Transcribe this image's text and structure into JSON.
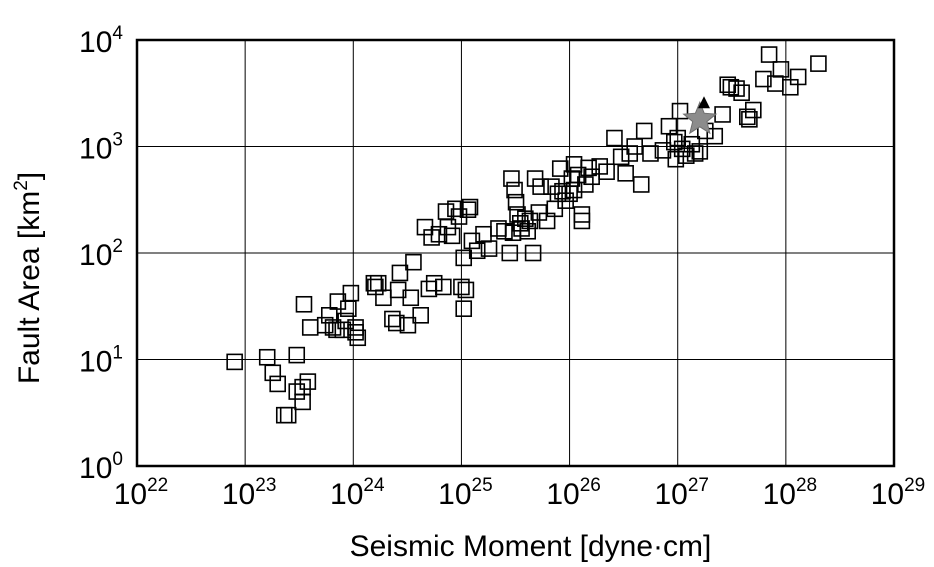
{
  "chart_data": {
    "type": "scatter",
    "title": "",
    "xlabel": "Seismic Moment [dyne·cm]",
    "ylabel_main": "Fault Area [km",
    "ylabel_sup": "2",
    "ylabel_end": "]",
    "x_scale": "log",
    "y_scale": "log",
    "xlim": [
      1e+22,
      1e+29
    ],
    "ylim": [
      1,
      10000
    ],
    "grid": true,
    "marker": "open-square",
    "x_ticks": [
      {
        "base": "10",
        "exp": "22",
        "value": 1e+22
      },
      {
        "base": "10",
        "exp": "23",
        "value": 1e+23
      },
      {
        "base": "10",
        "exp": "24",
        "value": 1e+24
      },
      {
        "base": "10",
        "exp": "25",
        "value": 1e+25
      },
      {
        "base": "10",
        "exp": "26",
        "value": 1e+26
      },
      {
        "base": "10",
        "exp": "27",
        "value": 1e+27
      },
      {
        "base": "10",
        "exp": "28",
        "value": 1e+28
      },
      {
        "base": "10",
        "exp": "29",
        "value": 1e+29
      }
    ],
    "y_ticks": [
      {
        "base": "10",
        "exp": "0",
        "value": 1
      },
      {
        "base": "10",
        "exp": "1",
        "value": 10
      },
      {
        "base": "10",
        "exp": "2",
        "value": 100
      },
      {
        "base": "10",
        "exp": "3",
        "value": 1000
      },
      {
        "base": "10",
        "exp": "4",
        "value": 10000
      }
    ],
    "points": [
      [
        8e+22,
        9.5
      ],
      [
        1.6e+23,
        10.5
      ],
      [
        1.8e+23,
        7.5
      ],
      [
        2e+23,
        5.9
      ],
      [
        2.3e+23,
        3.0
      ],
      [
        2.5e+23,
        3.0
      ],
      [
        3e+23,
        5.0
      ],
      [
        3e+23,
        11.0
      ],
      [
        3.4e+23,
        4.0
      ],
      [
        3.4e+23,
        5.5
      ],
      [
        3.8e+23,
        6.2
      ],
      [
        3.5e+23,
        33
      ],
      [
        4e+23,
        20
      ],
      [
        5.5e+23,
        21
      ],
      [
        6e+23,
        26
      ],
      [
        6.5e+23,
        20
      ],
      [
        7e+23,
        19
      ],
      [
        7.2e+23,
        35
      ],
      [
        8e+23,
        19
      ],
      [
        8.5e+23,
        23
      ],
      [
        9e+23,
        30
      ],
      [
        9.5e+23,
        42
      ],
      [
        1.05e+24,
        18
      ],
      [
        1.1e+24,
        16
      ],
      [
        1.05e+24,
        20
      ],
      [
        1.55e+24,
        52
      ],
      [
        1.6e+24,
        48
      ],
      [
        1.7e+24,
        52
      ],
      [
        1.9e+24,
        38
      ],
      [
        2.3e+24,
        24
      ],
      [
        2.5e+24,
        22
      ],
      [
        2.6e+24,
        45
      ],
      [
        2.7e+24,
        65
      ],
      [
        3.2e+24,
        21
      ],
      [
        3.4e+24,
        38
      ],
      [
        3.6e+24,
        82
      ],
      [
        4.2e+24,
        26
      ],
      [
        4.6e+24,
        175
      ],
      [
        5e+24,
        46
      ],
      [
        5.3e+24,
        140
      ],
      [
        5.6e+24,
        52
      ],
      [
        6.2e+24,
        150
      ],
      [
        6.8e+24,
        48
      ],
      [
        7.2e+24,
        245
      ],
      [
        7.5e+24,
        175
      ],
      [
        8.2e+24,
        145
      ],
      [
        8.8e+24,
        260
      ],
      [
        9.5e+24,
        220
      ],
      [
        1e+25,
        48
      ],
      [
        1.05e+25,
        90
      ],
      [
        1.05e+25,
        30
      ],
      [
        1.1e+25,
        45
      ],
      [
        1.15e+25,
        255
      ],
      [
        1.2e+25,
        270
      ],
      [
        1.25e+25,
        130
      ],
      [
        1.4e+25,
        105
      ],
      [
        1.6e+25,
        150
      ],
      [
        1.8e+25,
        110
      ],
      [
        2.2e+25,
        170
      ],
      [
        2.5e+25,
        160
      ],
      [
        2.8e+25,
        100
      ],
      [
        3e+25,
        155
      ],
      [
        2.9e+25,
        500
      ],
      [
        3.1e+25,
        390
      ],
      [
        3.2e+25,
        300
      ],
      [
        3.3e+25,
        230
      ],
      [
        3.5e+25,
        190
      ],
      [
        3.6e+25,
        170
      ],
      [
        3.9e+25,
        210
      ],
      [
        4.1e+25,
        160
      ],
      [
        4.3e+25,
        200
      ],
      [
        4.6e+25,
        100
      ],
      [
        4.8e+25,
        500
      ],
      [
        5.2e+25,
        240
      ],
      [
        5.4e+25,
        420
      ],
      [
        6.2e+25,
        200
      ],
      [
        6.8e+25,
        420
      ],
      [
        7.3e+25,
        260
      ],
      [
        7.8e+25,
        360
      ],
      [
        8.2e+25,
        620
      ],
      [
        8.6e+25,
        380
      ],
      [
        9.2e+25,
        310
      ],
      [
        1e+26,
        360
      ],
      [
        1.05e+26,
        500
      ],
      [
        1.1e+26,
        680
      ],
      [
        1.1e+26,
        390
      ],
      [
        1.2e+26,
        540
      ],
      [
        1.3e+26,
        230
      ],
      [
        1.3e+26,
        200
      ],
      [
        1.4e+26,
        440
      ],
      [
        1.5e+26,
        630
      ],
      [
        1.6e+26,
        520
      ],
      [
        1.9e+26,
        650
      ],
      [
        2.2e+26,
        580
      ],
      [
        2.6e+26,
        1200
      ],
      [
        3e+26,
        800
      ],
      [
        3.3e+26,
        560
      ],
      [
        3.6e+26,
        860
      ],
      [
        4e+26,
        1000
      ],
      [
        4.6e+26,
        440
      ],
      [
        4.9e+26,
        1400
      ],
      [
        5.6e+26,
        860
      ],
      [
        7.3e+26,
        920
      ],
      [
        8.3e+26,
        1550
      ],
      [
        9.3e+26,
        1100
      ],
      [
        9.6e+26,
        760
      ],
      [
        1e+27,
        1200
      ],
      [
        1.05e+27,
        2150
      ],
      [
        1.1e+27,
        950
      ],
      [
        1.2e+27,
        820
      ],
      [
        1.35e+27,
        1050
      ],
      [
        1.45e+27,
        860
      ],
      [
        1.6e+27,
        900
      ],
      [
        1.8e+27,
        1400
      ],
      [
        2.2e+27,
        1250
      ],
      [
        2.6e+27,
        2000
      ],
      [
        2.9e+27,
        3800
      ],
      [
        3.1e+27,
        3600
      ],
      [
        3.5e+27,
        3500
      ],
      [
        3.9e+27,
        3200
      ],
      [
        4.4e+27,
        1900
      ],
      [
        4.6e+27,
        1800
      ],
      [
        5e+27,
        2200
      ],
      [
        6.2e+27,
        4300
      ],
      [
        7e+27,
        7300
      ],
      [
        8e+27,
        3900
      ],
      [
        9e+27,
        5300
      ],
      [
        1.1e+28,
        3600
      ],
      [
        1.3e+28,
        4500
      ],
      [
        2e+28,
        6000
      ]
    ],
    "highlight": [
      {
        "marker": "star",
        "color": "#8c8c8c",
        "x": 1.6e+27,
        "y": 1800
      },
      {
        "marker": "triangle",
        "color": "#000000",
        "x": 1.75e+27,
        "y": 2600
      }
    ]
  }
}
